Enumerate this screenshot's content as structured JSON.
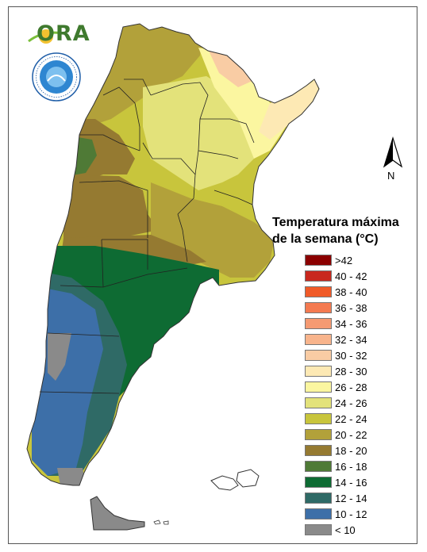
{
  "logo": {
    "brand_text": "ORA",
    "seal_text": "SERVICIO METEOROLÓGICO NACIONAL · ARGENTINA · SMN"
  },
  "north_arrow": {
    "label": "N"
  },
  "legend": {
    "title_line1": "Temperatura máxima",
    "title_line2": "de la semana (°C)",
    "items": [
      {
        "label": ">42",
        "color": "#8b0000"
      },
      {
        "label": "40 - 42",
        "color": "#c8281e"
      },
      {
        "label": "38 - 40",
        "color": "#f05a28"
      },
      {
        "label": "36 - 38",
        "color": "#f47a50"
      },
      {
        "label": "34 - 36",
        "color": "#f59a72"
      },
      {
        "label": "32 - 34",
        "color": "#f8b48c"
      },
      {
        "label": "30 - 32",
        "color": "#f9cca4"
      },
      {
        "label": "28 - 30",
        "color": "#fde9b4"
      },
      {
        "label": "26 - 28",
        "color": "#fbf6a0"
      },
      {
        "label": "24 - 26",
        "color": "#e3e27a"
      },
      {
        "label": "22 - 24",
        "color": "#c8c53c"
      },
      {
        "label": "20 - 22",
        "color": "#b2a13a"
      },
      {
        "label": "18 - 20",
        "color": "#957a31"
      },
      {
        "label": "16 - 18",
        "color": "#4f7a36"
      },
      {
        "label": "14 - 16",
        "color": "#0e6b33"
      },
      {
        "label": "12 - 14",
        "color": "#2f6a66"
      },
      {
        "label": "10 - 12",
        "color": "#3d6fa8"
      },
      {
        "label": "< 10",
        "color": "#8a8a8a"
      }
    ]
  }
}
